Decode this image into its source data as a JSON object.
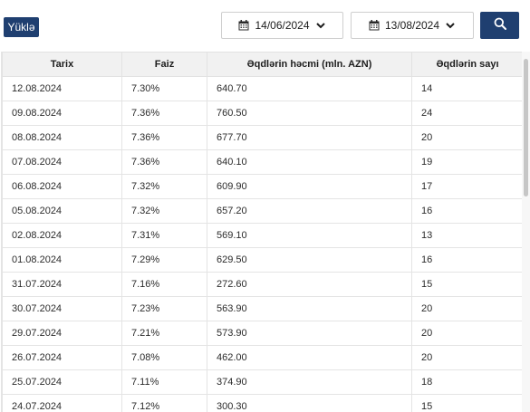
{
  "toolbar": {
    "upload_label": "Yüklə",
    "date_from": "14/06/2024",
    "date_to": "13/08/2024",
    "accent_color": "#1f3f70"
  },
  "table": {
    "headers": [
      "Tarix",
      "Faiz",
      "Əqdlərin həcmi (mln. AZN)",
      "Əqdlərin sayı"
    ],
    "rows": [
      [
        "12.08.2024",
        "7.30%",
        "640.70",
        "14"
      ],
      [
        "09.08.2024",
        "7.36%",
        "760.50",
        "24"
      ],
      [
        "08.08.2024",
        "7.36%",
        "677.70",
        "20"
      ],
      [
        "07.08.2024",
        "7.36%",
        "640.10",
        "19"
      ],
      [
        "06.08.2024",
        "7.32%",
        "609.90",
        "17"
      ],
      [
        "05.08.2024",
        "7.32%",
        "657.20",
        "16"
      ],
      [
        "02.08.2024",
        "7.31%",
        "569.10",
        "13"
      ],
      [
        "01.08.2024",
        "7.29%",
        "629.50",
        "16"
      ],
      [
        "31.07.2024",
        "7.16%",
        "272.60",
        "15"
      ],
      [
        "30.07.2024",
        "7.23%",
        "563.90",
        "20"
      ],
      [
        "29.07.2024",
        "7.21%",
        "573.90",
        "20"
      ],
      [
        "26.07.2024",
        "7.08%",
        "462.00",
        "20"
      ],
      [
        "25.07.2024",
        "7.11%",
        "374.90",
        "18"
      ],
      [
        "24.07.2024",
        "7.12%",
        "300.30",
        "15"
      ]
    ]
  },
  "icons": {
    "calendar": "calendar-icon",
    "chevron": "chevron-down-icon",
    "search": "search-icon"
  }
}
